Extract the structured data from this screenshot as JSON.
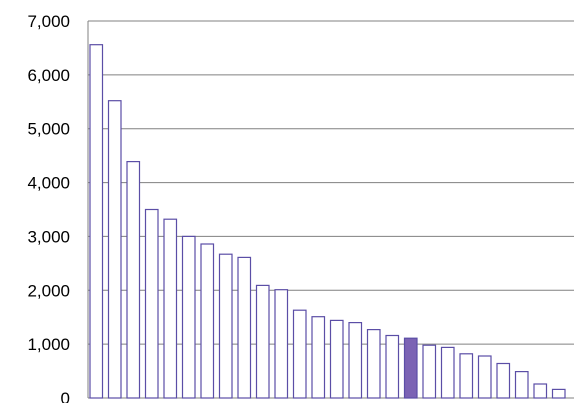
{
  "chart_data": {
    "type": "bar",
    "title": "",
    "xlabel": "",
    "ylabel": "",
    "ylim": [
      0,
      7000
    ],
    "y_ticks": [
      0,
      1000,
      2000,
      3000,
      4000,
      5000,
      6000,
      7000
    ],
    "y_tick_labels": [
      "0",
      "1,000",
      "2,000",
      "3,000",
      "4,000",
      "5,000",
      "6,000",
      "7,000"
    ],
    "grid": true,
    "legend": "none",
    "values": [
      6560,
      5520,
      4390,
      3500,
      3320,
      3000,
      2860,
      2670,
      2610,
      2090,
      2010,
      1630,
      1510,
      1440,
      1400,
      1270,
      1160,
      1110,
      980,
      940,
      820,
      780,
      640,
      490,
      260,
      160
    ],
    "highlight_index": 17,
    "colors": {
      "bar_fill": "#ffffff",
      "bar_stroke": "#5b4ea6",
      "highlight_fill": "#7b63b4",
      "gridline": "#808080",
      "axis": "#808080"
    }
  }
}
